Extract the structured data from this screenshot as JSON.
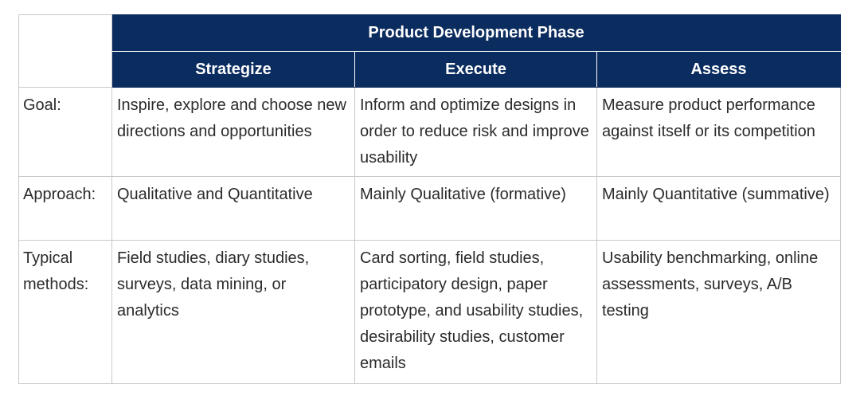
{
  "table": {
    "phase_title": "Product Development Phase",
    "columns": [
      "Strategize",
      "Execute",
      "Assess"
    ],
    "rows": [
      {
        "label": "Goal:",
        "cells": [
          "Inspire, explore and choose new directions and opportunities",
          "Inform and optimize designs in order to reduce risk and improve usability",
          "Measure product performance against itself or its competition"
        ]
      },
      {
        "label": "Approach:",
        "cells": [
          "Qualitative and Quantitative",
          "Mainly Qualitative (formative)",
          "Mainly Quantitative (summative)"
        ]
      },
      {
        "label": "Typical methods:",
        "cells": [
          "Field studies, diary studies, surveys, data mining, or analytics",
          "Card sorting, field studies, participatory design, paper prototype, and usability studies, desirability studies, customer emails",
          "Usability benchmarking, online assessments, surveys, A/B testing"
        ]
      }
    ]
  },
  "colors": {
    "header_bg": "#0b2c5f",
    "header_text": "#ffffff",
    "body_text": "#2b2b2b",
    "grid": "#c9c9c9"
  }
}
